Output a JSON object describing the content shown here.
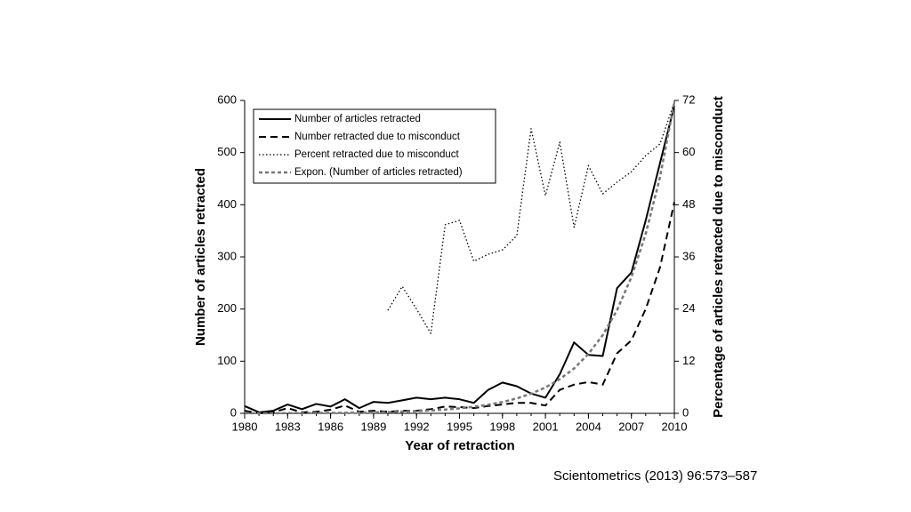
{
  "chart_data": {
    "type": "line",
    "x_label": "Year of retraction",
    "y_label": "Number of articles retracted",
    "y2_label": "Percentage of articles retracted due to misconduct",
    "caption": "Scientometrics (2013) 96:573–587",
    "x": [
      1980,
      1981,
      1982,
      1983,
      1984,
      1985,
      1986,
      1987,
      1988,
      1989,
      1990,
      1991,
      1992,
      1993,
      1994,
      1995,
      1996,
      1997,
      1998,
      1999,
      2000,
      2001,
      2002,
      2003,
      2004,
      2005,
      2006,
      2007,
      2008,
      2009,
      2010
    ],
    "xlim": [
      1980,
      2010
    ],
    "xticks": [
      1980,
      1983,
      1986,
      1989,
      1992,
      1995,
      1998,
      2001,
      2004,
      2007,
      2010
    ],
    "ylim": [
      0,
      600
    ],
    "yticks": [
      0,
      100,
      200,
      300,
      400,
      500,
      600
    ],
    "y2lim": [
      0,
      72
    ],
    "y2ticks": [
      0,
      12,
      24,
      36,
      48,
      60,
      72
    ],
    "grid": false,
    "legend": "upper left",
    "series": [
      {
        "name": "Number of articles retracted",
        "color": "#000000",
        "line_style": "solid",
        "values": [
          14,
          2,
          5,
          17,
          8,
          18,
          13,
          27,
          10,
          22,
          20,
          25,
          30,
          27,
          30,
          27,
          20,
          45,
          59,
          52,
          38,
          30,
          75,
          136,
          112,
          110,
          240,
          270,
          370,
          480,
          590
        ]
      },
      {
        "name": "Number retracted due to misconduct",
        "color": "#000000",
        "line_style": "dashed",
        "values": [
          5,
          0,
          2,
          10,
          2,
          3,
          7,
          15,
          3,
          5,
          3,
          5,
          5,
          8,
          13,
          12,
          10,
          14,
          17,
          20,
          20,
          15,
          45,
          55,
          60,
          55,
          115,
          140,
          200,
          280,
          405
        ]
      },
      {
        "name": "Percent retracted due to misconduct",
        "color": "#000000",
        "line_style": "dotted",
        "axis": "y2",
        "values": [
          null,
          null,
          null,
          null,
          null,
          null,
          null,
          null,
          null,
          null,
          23.7,
          29.2,
          24,
          18.4,
          43.4,
          44.4,
          35,
          36.6,
          37.6,
          40.9,
          65.5,
          50.1,
          62.4,
          42.8,
          57,
          50.5,
          53.2,
          55.6,
          59.3,
          62,
          71.6
        ]
      },
      {
        "name": "Expon. (Number of articles retracted)",
        "color": "#777777",
        "line_style": "double-dashed",
        "values": [
          0.15,
          0.2,
          0.26,
          0.34,
          0.45,
          0.6,
          0.79,
          1.0,
          1.4,
          1.8,
          2.4,
          3.2,
          4.2,
          5.5,
          7.2,
          9.5,
          12.5,
          16.5,
          21.7,
          28.6,
          37.7,
          49.7,
          65.5,
          86,
          114,
          150,
          198,
          261,
          344,
          453,
          597
        ]
      }
    ]
  }
}
